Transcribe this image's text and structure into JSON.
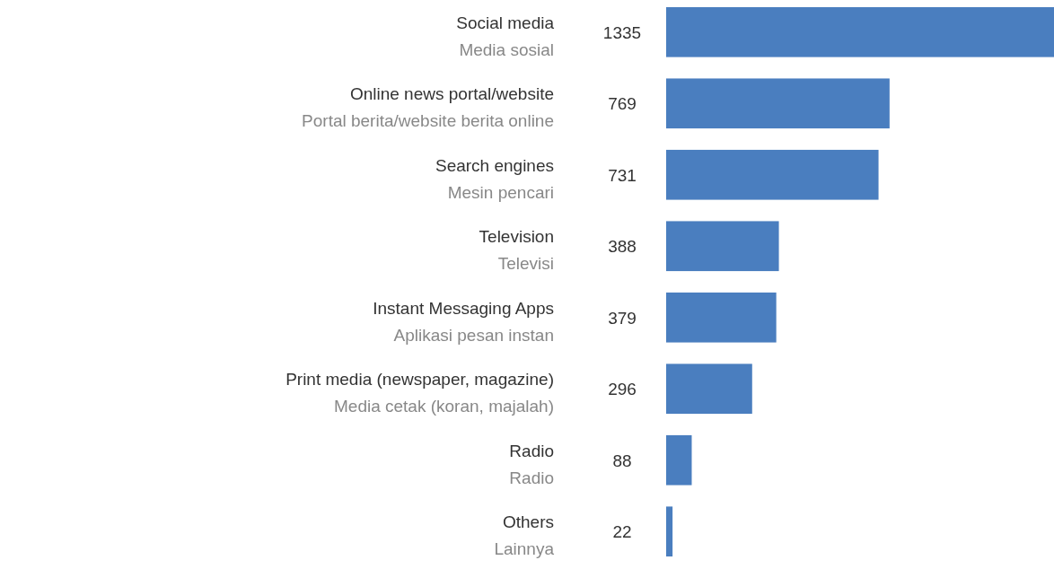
{
  "chart_data": {
    "type": "bar",
    "orientation": "horizontal",
    "data_labels": true,
    "categories": [
      "Social media\nMedia sosial",
      "Online news portal/website\nPortal berita/website berita online",
      "Search engines\nMesin pencari",
      "Television\nTelevisi",
      "Instant Messaging Apps\nAplikasi pesan instan",
      "Print media (newspaper, magazine)\nMedia cetak (koran, majalah)",
      "Radio\nRadio",
      "Others\nLainnya"
    ],
    "values": [
      1335,
      769,
      731,
      388,
      379,
      296,
      88,
      22
    ],
    "color": "#4a7ebf"
  }
}
